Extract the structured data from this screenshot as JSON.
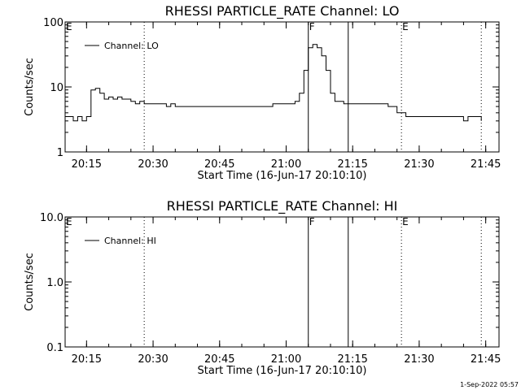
{
  "footer": {
    "stamp": "1-Sep-2022 05:57"
  },
  "chart_data": [
    {
      "type": "line",
      "title": "RHESSI PARTICLE_RATE Channel: LO",
      "xlabel": "Start Time (16-Jun-17 20:10:10)",
      "ylabel": "Counts/sec",
      "yscale": "log",
      "ylim": [
        1,
        100
      ],
      "yticks": [
        1,
        10,
        100
      ],
      "ytick_labels": [
        "1",
        "10",
        "100"
      ],
      "xlim": [
        "20:10:10",
        "21:48:00"
      ],
      "xticks": [
        "20:15",
        "20:30",
        "20:45",
        "21:00",
        "21:15",
        "21:30",
        "21:45"
      ],
      "legend": {
        "position": "top-left"
      },
      "series": [
        {
          "name": "Channel: LO",
          "x": [
            "20:10:10",
            "20:11",
            "20:12",
            "20:13",
            "20:14",
            "20:15",
            "20:16",
            "20:17",
            "20:18",
            "20:19",
            "20:20",
            "20:21",
            "20:22",
            "20:23",
            "20:24",
            "20:25",
            "20:26",
            "20:27",
            "20:28",
            "20:29",
            "20:30",
            "20:31",
            "20:32",
            "20:33",
            "20:34",
            "20:35",
            "20:36",
            "20:37",
            "20:38",
            "20:39",
            "20:40",
            "20:41",
            "20:42",
            "20:43",
            "20:44",
            "20:45",
            "20:46",
            "20:47",
            "20:48",
            "20:49",
            "20:50",
            "20:51",
            "20:52",
            "20:53",
            "20:54",
            "20:55",
            "20:56",
            "20:57",
            "20:58",
            "20:59",
            "21:00",
            "21:01",
            "21:02",
            "21:03",
            "21:04",
            "21:05",
            "21:06",
            "21:07",
            "21:08",
            "21:09",
            "21:10",
            "21:11",
            "21:12",
            "21:13",
            "21:14",
            "21:15",
            "21:16",
            "21:17",
            "21:18",
            "21:19",
            "21:20",
            "21:21",
            "21:22",
            "21:23",
            "21:24",
            "21:25",
            "21:26",
            "21:27",
            "21:28",
            "21:29",
            "21:30",
            "21:31",
            "21:32",
            "21:33",
            "21:34",
            "21:35",
            "21:36",
            "21:37",
            "21:38",
            "21:39",
            "21:40",
            "21:41",
            "21:42",
            "21:43",
            "21:44"
          ],
          "values": [
            3.5,
            3.5,
            3,
            3.5,
            3,
            3.5,
            9,
            9.5,
            8,
            6.5,
            7,
            6.5,
            7,
            6.5,
            6.5,
            6,
            5.5,
            6,
            5.5,
            5.5,
            5.5,
            5.5,
            5.5,
            5,
            5.5,
            5,
            5,
            5,
            5,
            5,
            5,
            5,
            5,
            5,
            5,
            5,
            5,
            5,
            5,
            5,
            5,
            5,
            5,
            5,
            5,
            5,
            5,
            5.5,
            5.5,
            5.5,
            5.5,
            5.5,
            6,
            8,
            18,
            40,
            45,
            40,
            30,
            18,
            8,
            6,
            6,
            5.5,
            5.5,
            5.5,
            5.5,
            5.5,
            5.5,
            5.5,
            5.5,
            5.5,
            5.5,
            5,
            5,
            4,
            4,
            3.5,
            3.5,
            3.5,
            3.5,
            3.5,
            3.5,
            3.5,
            3.5,
            3.5,
            3.5,
            3.5,
            3.5,
            3.5,
            3,
            3.5,
            3.5,
            3.5,
            3
          ]
        }
      ],
      "markers": [
        {
          "label": "E",
          "time": "20:10:10",
          "style": "dotted"
        },
        {
          "label": "",
          "time": "20:28",
          "style": "dotted"
        },
        {
          "label": "F",
          "time": "21:05",
          "style": "solid"
        },
        {
          "label": "",
          "time": "21:14",
          "style": "solid"
        },
        {
          "label": "E",
          "time": "21:26",
          "style": "dotted"
        },
        {
          "label": "",
          "time": "21:44",
          "style": "dotted"
        }
      ]
    },
    {
      "type": "line",
      "title": "RHESSI PARTICLE_RATE Channel: HI",
      "xlabel": "Start Time (16-Jun-17 20:10:10)",
      "ylabel": "Counts/sec",
      "yscale": "log",
      "ylim": [
        0.1,
        10
      ],
      "yticks": [
        0.1,
        1,
        10
      ],
      "ytick_labels": [
        "0.1",
        "1.0",
        "10.0"
      ],
      "xlim": [
        "20:10:10",
        "21:48:00"
      ],
      "xticks": [
        "20:15",
        "20:30",
        "20:45",
        "21:00",
        "21:15",
        "21:30",
        "21:45"
      ],
      "legend": {
        "position": "top-left"
      },
      "series": [
        {
          "name": "Channel: HI",
          "x": [],
          "values": []
        }
      ],
      "markers": [
        {
          "label": "E",
          "time": "20:10:10",
          "style": "dotted"
        },
        {
          "label": "",
          "time": "20:28",
          "style": "dotted"
        },
        {
          "label": "F",
          "time": "21:05",
          "style": "solid"
        },
        {
          "label": "",
          "time": "21:14",
          "style": "solid"
        },
        {
          "label": "E",
          "time": "21:26",
          "style": "dotted"
        },
        {
          "label": "",
          "time": "21:44",
          "style": "dotted"
        }
      ]
    }
  ]
}
